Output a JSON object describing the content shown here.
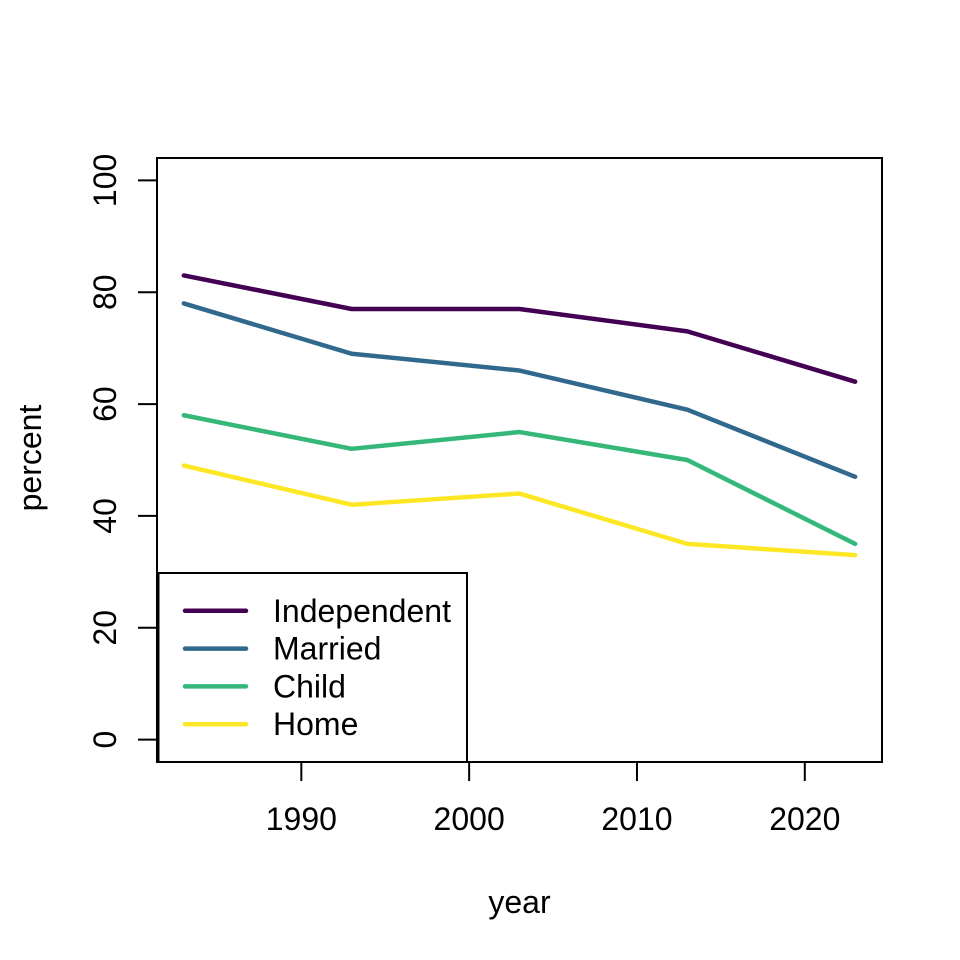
{
  "figure": {
    "background": "#ffffff",
    "axis_color": "#000000",
    "text_color": "#000000"
  },
  "chart_data": {
    "type": "line",
    "title": "",
    "xlabel": "year",
    "ylabel": "percent",
    "x": [
      1983,
      1993,
      2003,
      2013,
      2023
    ],
    "series": [
      {
        "name": "Independent",
        "color": "#440154",
        "values": [
          83,
          77,
          77,
          73,
          64
        ]
      },
      {
        "name": "Married",
        "color": "#31688E",
        "values": [
          78,
          69,
          66,
          59,
          47
        ]
      },
      {
        "name": "Child",
        "color": "#35B779",
        "values": [
          58,
          52,
          55,
          50,
          35
        ]
      },
      {
        "name": "Home",
        "color": "#FDE725",
        "values": [
          49,
          42,
          44,
          35,
          33
        ]
      }
    ],
    "x_ticks": [
      1990,
      2000,
      2010,
      2020
    ],
    "y_ticks": [
      0,
      20,
      40,
      60,
      80,
      100
    ],
    "xlim": [
      1983,
      2023
    ],
    "ylim": [
      0,
      100
    ],
    "grid": false,
    "legend_position": "bottomleft",
    "legend_entries": [
      "Independent",
      "Married",
      "Child",
      "Home"
    ]
  }
}
